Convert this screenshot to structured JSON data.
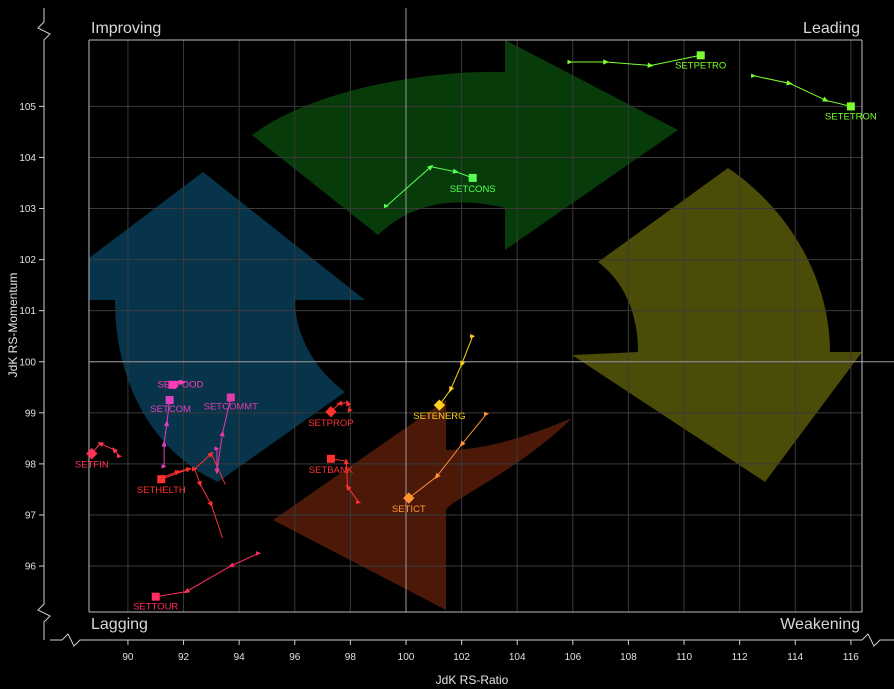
{
  "chart_data": {
    "type": "scatter",
    "xlabel": "JdK RS-Ratio",
    "ylabel": "JdK RS-Momentum",
    "xlim": [
      88.6,
      116.4
    ],
    "ylim": [
      95.1,
      106.3
    ],
    "x_ticks": [
      90,
      92,
      94,
      96,
      98,
      100,
      102,
      104,
      106,
      108,
      110,
      112,
      114,
      116
    ],
    "y_ticks": [
      96,
      97,
      98,
      99,
      100,
      101,
      102,
      103,
      104,
      105
    ],
    "grid": true,
    "quadrants": {
      "top_left": "Improving",
      "top_right": "Leading",
      "bottom_left": "Lagging",
      "bottom_right": "Weakening"
    },
    "series": [
      {
        "name": "SETPETRO",
        "color": "#7CFF2E",
        "marker": "square",
        "points": [
          [
            105.9,
            105.87
          ],
          [
            107.2,
            105.87
          ],
          [
            108.8,
            105.8
          ],
          [
            110.6,
            106.0
          ]
        ]
      },
      {
        "name": "SETETRON",
        "color": "#7CFF2E",
        "marker": "square",
        "points": [
          [
            112.5,
            105.6
          ],
          [
            113.8,
            105.45
          ],
          [
            115.1,
            105.12
          ],
          [
            116.0,
            105.0
          ]
        ]
      },
      {
        "name": "SETCONS",
        "color": "#55FF55",
        "marker": "square",
        "points": [
          [
            99.3,
            103.05
          ],
          [
            100.9,
            103.82
          ],
          [
            101.8,
            103.72
          ],
          [
            102.4,
            103.6
          ]
        ]
      },
      {
        "name": "SETENERG",
        "color": "#FFD21C",
        "marker": "diamond",
        "points": [
          [
            102.4,
            100.5
          ],
          [
            102.0,
            99.95
          ],
          [
            101.6,
            99.45
          ],
          [
            101.2,
            99.15
          ]
        ]
      },
      {
        "name": "SETICT",
        "color": "#FF9430",
        "marker": "diamond",
        "points": [
          [
            102.9,
            98.98
          ],
          [
            102.0,
            98.38
          ],
          [
            101.1,
            97.75
          ],
          [
            100.1,
            97.33
          ]
        ]
      },
      {
        "name": "SETPROP",
        "color": "#FF3030",
        "marker": "diamond",
        "points": [
          [
            98.0,
            99.05
          ],
          [
            97.9,
            99.2
          ],
          [
            97.6,
            99.18
          ],
          [
            97.3,
            99.02
          ]
        ]
      },
      {
        "name": "SETBANK",
        "color": "#FF3030",
        "marker": "square",
        "points": [
          [
            98.3,
            97.25
          ],
          [
            97.9,
            97.55
          ],
          [
            97.85,
            98.05
          ],
          [
            97.3,
            98.1
          ]
        ]
      },
      {
        "name": "SETFIN",
        "color": "#FF3355",
        "marker": "diamond",
        "points": [
          [
            89.7,
            98.15
          ],
          [
            89.5,
            98.28
          ],
          [
            89.0,
            98.4
          ],
          [
            88.7,
            98.2
          ]
        ]
      },
      {
        "name": "SETFOOD",
        "color": "#FF3DB8",
        "marker": "square",
        "points": [
          [
            92.0,
            99.6
          ],
          [
            91.8,
            99.6
          ],
          [
            91.7,
            99.5
          ],
          [
            91.6,
            99.55
          ]
        ]
      },
      {
        "name": "SETCOM",
        "color": "#E040C0",
        "marker": "square",
        "points": [
          [
            91.3,
            97.95
          ],
          [
            91.3,
            98.4
          ],
          [
            91.4,
            98.8
          ],
          [
            91.5,
            99.25
          ]
        ]
      },
      {
        "name": "SETCOMMT",
        "color": "#E33CA8",
        "marker": "square",
        "points": [
          [
            93.2,
            98.3
          ],
          [
            93.2,
            97.85
          ],
          [
            93.4,
            98.6
          ],
          [
            93.7,
            99.3
          ]
        ]
      },
      {
        "name": "SETHELTH",
        "color": "#FF3030",
        "marker": "square",
        "points": [
          [
            91.3,
            97.75
          ],
          [
            91.8,
            97.85
          ],
          [
            92.2,
            97.9
          ],
          [
            91.2,
            97.7
          ]
        ]
      },
      {
        "name": "SETTOUR",
        "color": "#FF2E5E",
        "marker": "square",
        "points": [
          [
            94.7,
            96.25
          ],
          [
            93.7,
            96.0
          ],
          [
            92.1,
            95.5
          ],
          [
            91.0,
            95.4
          ]
        ]
      }
    ],
    "extra_trails": [
      {
        "color": "#FF3030",
        "points": [
          [
            92.4,
            97.9
          ],
          [
            92.6,
            97.6
          ],
          [
            93.0,
            97.2
          ],
          [
            93.4,
            96.55
          ]
        ]
      },
      {
        "color": "#FF3030",
        "points": [
          [
            92.4,
            97.9
          ],
          [
            93.0,
            98.2
          ],
          [
            93.5,
            97.6
          ]
        ]
      }
    ]
  }
}
